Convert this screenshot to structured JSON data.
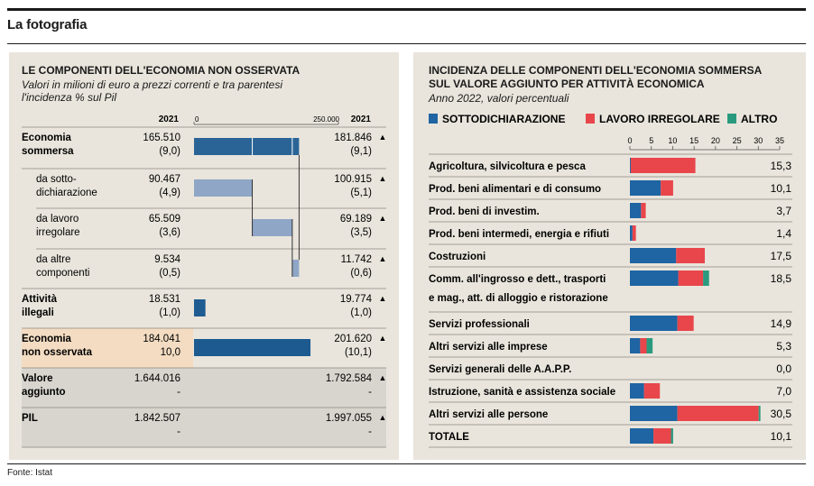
{
  "page": {
    "title": "La fotografia",
    "source": "Fonte: Istat"
  },
  "left": {
    "title": "LE COMPONENTI DELL'ECONOMIA NON OSSERVATA",
    "subtitle_1": "Valori in milioni di euro a prezzi correnti e tra parentesi",
    "subtitle_2": "l'incidenza % sul Pil",
    "header": {
      "col_2021_left": "2021",
      "col_2021_right": "2021",
      "axis_min": "0",
      "axis_max": "250.000"
    },
    "colors": {
      "dark": "#2a6496",
      "light": "#8fa6c6",
      "illegal": "#1f5c92",
      "nonobs": "#1c5a8f",
      "highlight": "#f3dcc2",
      "grey": "#d8d5cf"
    }
  },
  "right": {
    "title_1": "INCIDENZA DELLE COMPONENTI DELL'ECONOMIA SOMMERSA",
    "title_2": "SUL VALORE AGGIUNTO PER ATTIVITÀ ECONOMICA",
    "subtitle": "Anno 2022, valori percentuali",
    "legend": [
      {
        "label": "SOTTODICHIARAZIONE",
        "color": "#1f64a3"
      },
      {
        "label": "LAVORO IRREGOLARE",
        "color": "#e8464b"
      },
      {
        "label": "ALTRO",
        "color": "#2a9a7f"
      }
    ]
  },
  "chart_data": [
    {
      "type": "bar",
      "title": "LE COMPONENTI DELL'ECONOMIA NON OSSERVATA",
      "xlim": [
        0,
        250000
      ],
      "rows": [
        {
          "label": "Economia sommersa",
          "v_left": "165.510",
          "p_left": "(9,0)",
          "v_right": "181.846",
          "p_right": "(9,1)",
          "arrow": "▲",
          "value": 181846,
          "offset": 0,
          "bar": "dark"
        },
        {
          "label": "da sotto-dichiarazione",
          "v_left": "90.467",
          "p_left": "(4,9)",
          "v_right": "100.915",
          "p_right": "(5,1)",
          "arrow": "▲",
          "value": 100915,
          "offset": 0,
          "bar": "light"
        },
        {
          "label": "da lavoro irregolare",
          "v_left": "65.509",
          "p_left": "(3,6)",
          "v_right": "69.189",
          "p_right": "(3,5)",
          "arrow": "▲",
          "value": 69189,
          "offset": 100915,
          "bar": "light"
        },
        {
          "label": "da altre componenti",
          "v_left": "9.534",
          "p_left": "(0,5)",
          "v_right": "11.742",
          "p_right": "(0,6)",
          "arrow": "▲",
          "value": 11742,
          "offset": 170104,
          "bar": "light"
        },
        {
          "label": "Attività illegali",
          "v_left": "18.531",
          "p_left": "(1,0)",
          "v_right": "19.774",
          "p_right": "(1,0)",
          "arrow": "▲",
          "value": 19774,
          "offset": 0,
          "bar": "illegal"
        },
        {
          "label": "Economia non osservata",
          "v_left": "184.041",
          "p_left": "10,0",
          "v_right": "201.620",
          "p_right": "(10,1)",
          "arrow": "▲",
          "value": 201620,
          "offset": 0,
          "bar": "nonobs"
        },
        {
          "label": "Valore aggiunto",
          "v_left": "1.644.016",
          "p_left": "-",
          "v_right": "1.792.584",
          "p_right": "-",
          "arrow": "▲",
          "value": null,
          "offset": 0,
          "bar": "none"
        },
        {
          "label": "PIL",
          "v_left": "1.842.507",
          "p_left": "-",
          "v_right": "1.997.055",
          "p_right": "-",
          "arrow": "▲",
          "value": null,
          "offset": 0,
          "bar": "none"
        }
      ]
    },
    {
      "type": "bar",
      "stacked": true,
      "orientation": "horizontal",
      "title": "INCIDENZA DELLE COMPONENTI DELL'ECONOMIA SOMMERSA SUL VALORE AGGIUNTO PER ATTIVITÀ ECONOMICA",
      "xlim": [
        0,
        35
      ],
      "xticks": [
        "0",
        "5",
        "10",
        "15",
        "20",
        "25",
        "30",
        "35"
      ],
      "categories": [
        "Agricoltura, silvicoltura e pesca",
        "Prod. beni alimentari e di consumo",
        "Prod. beni di investim.",
        "Prod. beni intermedi, energia e rifiuti",
        "Costruzioni",
        "Comm. all'ingrosso e dett., trasporti e mag., att. di alloggio e ristorazione",
        "Servizi professionali",
        "Altri servizi alle imprese",
        "Servizi generali delle A.A.P.P.",
        "Istruzione, sanità e assistenza sociale",
        "Altri servizi alle persone",
        "TOTALE"
      ],
      "totals": [
        "15,3",
        "10,1",
        "3,7",
        "1,4",
        "17,5",
        "18,5",
        "14,9",
        "5,3",
        "0,0",
        "7,0",
        "30,5",
        "10,1"
      ],
      "series": [
        {
          "name": "SOTTODICHIARAZIONE",
          "values": [
            0.2,
            7.2,
            2.6,
            0.6,
            10.8,
            11.3,
            11.1,
            2.4,
            0,
            3.3,
            11.1,
            5.5
          ]
        },
        {
          "name": "LAVORO IRREGOLARE",
          "values": [
            15.1,
            2.9,
            1.1,
            0.8,
            6.7,
            5.8,
            3.8,
            1.5,
            0,
            3.7,
            19.0,
            4.1
          ]
        },
        {
          "name": "ALTRO",
          "values": [
            0,
            0,
            0,
            0,
            0,
            1.4,
            0,
            1.4,
            0,
            0,
            0.4,
            0.5
          ]
        }
      ]
    }
  ]
}
